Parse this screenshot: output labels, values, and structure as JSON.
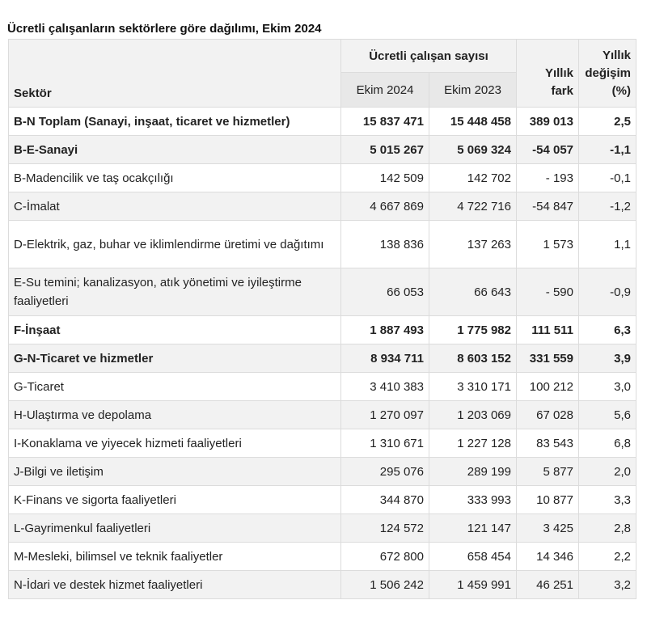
{
  "title": "Ücretli çalışanların sektörlere göre dağılımı, Ekim 2024",
  "headers": {
    "sector": "Sektör",
    "group": "Ücretli çalışan sayısı",
    "ekim2024": "Ekim 2024",
    "ekim2023": "Ekim 2023",
    "fark_line1": "Yıllık",
    "fark_line2": "fark",
    "degisim_line1": "Yıllık",
    "degisim_line2": "değişim",
    "degisim_line3": "(%)"
  },
  "rows": [
    {
      "sector": "B-N Toplam (Sanayi, inşaat, ticaret ve hizmetler)",
      "e2024": "15 837 471",
      "e2023": "15 448 458",
      "fark": "389 013",
      "pct": "2,5",
      "bold": true
    },
    {
      "sector": "B-E-Sanayi",
      "e2024": "5 015 267",
      "e2023": "5 069 324",
      "fark": "-54 057",
      "pct": "-1,1",
      "bold": true
    },
    {
      "sector": "B-Madencilik ve taş ocakçılığı",
      "e2024": "142 509",
      "e2023": "142 702",
      "fark": "- 193",
      "pct": "-0,1"
    },
    {
      "sector": "C-İmalat",
      "e2024": "4 667 869",
      "e2023": "4 722 716",
      "fark": "-54 847",
      "pct": "-1,2"
    },
    {
      "sector": "D-Elektrik, gaz, buhar ve iklimlendirme üretimi ve dağıtımı",
      "e2024": "138 836",
      "e2023": "137 263",
      "fark": "1 573",
      "pct": "1,1",
      "tall": true
    },
    {
      "sector": "E-Su temini; kanalizasyon, atık yönetimi ve iyileştirme faaliyetleri",
      "e2024": "66 053",
      "e2023": "66 643",
      "fark": "- 590",
      "pct": "-0,9",
      "tall": true
    },
    {
      "sector": "F-İnşaat",
      "e2024": "1 887 493",
      "e2023": "1 775 982",
      "fark": "111 511",
      "pct": "6,3",
      "bold": true
    },
    {
      "sector": "G-N-Ticaret ve hizmetler",
      "e2024": "8 934 711",
      "e2023": "8 603 152",
      "fark": "331 559",
      "pct": "3,9",
      "bold": true
    },
    {
      "sector": "G-Ticaret",
      "e2024": "3 410 383",
      "e2023": "3 310 171",
      "fark": "100 212",
      "pct": "3,0"
    },
    {
      "sector": "H-Ulaştırma ve depolama",
      "e2024": "1 270 097",
      "e2023": "1 203 069",
      "fark": "67 028",
      "pct": "5,6"
    },
    {
      "sector": "I-Konaklama ve yiyecek hizmeti faaliyetleri",
      "e2024": "1 310 671",
      "e2023": "1 227 128",
      "fark": "83 543",
      "pct": "6,8"
    },
    {
      "sector": "J-Bilgi ve iletişim",
      "e2024": "295 076",
      "e2023": "289 199",
      "fark": "5 877",
      "pct": "2,0"
    },
    {
      "sector": "K-Finans ve sigorta faaliyetleri",
      "e2024": "344 870",
      "e2023": "333 993",
      "fark": "10 877",
      "pct": "3,3"
    },
    {
      "sector": "L-Gayrimenkul faaliyetleri",
      "e2024": "124 572",
      "e2023": "121 147",
      "fark": "3 425",
      "pct": "2,8"
    },
    {
      "sector": "M-Mesleki, bilimsel ve teknik faaliyetler",
      "e2024": "672 800",
      "e2023": "658 454",
      "fark": "14 346",
      "pct": "2,2"
    },
    {
      "sector": "N-İdari ve destek hizmet faaliyetleri",
      "e2024": "1 506 242",
      "e2023": "1 459 991",
      "fark": "46 251",
      "pct": "3,2"
    }
  ]
}
